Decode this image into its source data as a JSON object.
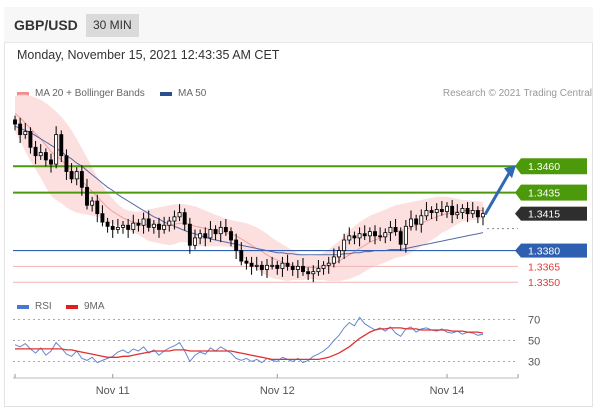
{
  "header": {
    "symbol": "GBP/USD",
    "timeframe": "30 MIN",
    "datetime": "Monday, November 15, 2021 12:43:35 AM CET"
  },
  "legend": {
    "bands_label": "MA 20 + Bollinger Bands",
    "ma50_label": "MA 50",
    "credit": "Research © 2021 Trading Central",
    "rsi_label": "RSI",
    "ma9_label": "9MA"
  },
  "colors": {
    "support": "#2f5fb0",
    "resistance": "#4c9a0b",
    "target_below": "#e23a3a",
    "current": "#2e2e2e",
    "arrow": "#2f69b2",
    "candle": "#000000",
    "bands_fill": "#fbdada",
    "ma20": "#f0a0a0",
    "ma50": "#5568a8",
    "rsi": "#6688cc",
    "rsi_ma": "#e03030"
  },
  "chart_data": [
    {
      "type": "candlestick",
      "title": "",
      "y_range": [
        1.3335,
        1.352
      ],
      "levels": [
        {
          "value": 1.346,
          "label": "1.3460",
          "kind": "resistance"
        },
        {
          "value": 1.3435,
          "label": "1.3435",
          "kind": "resistance"
        },
        {
          "value": 1.3415,
          "label": "1.3415",
          "kind": "current"
        },
        {
          "value": 1.338,
          "label": "1.3380",
          "kind": "support"
        },
        {
          "value": 1.3365,
          "label": "1.3365",
          "kind": "target"
        },
        {
          "value": 1.335,
          "label": "1.3350",
          "kind": "target"
        }
      ],
      "x_tick_labels": [
        "Nov 11",
        "Nov 12",
        "Nov 14"
      ],
      "close": [
        1.35,
        1.349,
        1.3493,
        1.3478,
        1.347,
        1.3473,
        1.3466,
        1.3462,
        1.349,
        1.347,
        1.3455,
        1.3448,
        1.3455,
        1.344,
        1.3423,
        1.3427,
        1.3415,
        1.3407,
        1.3403,
        1.34,
        1.3402,
        1.3404,
        1.34,
        1.3406,
        1.3404,
        1.341,
        1.3402,
        1.3405,
        1.34,
        1.3404,
        1.3408,
        1.3412,
        1.3416,
        1.3405,
        1.3385,
        1.3392,
        1.3396,
        1.3392,
        1.34,
        1.3396,
        1.3402,
        1.3398,
        1.339,
        1.338,
        1.337,
        1.3368,
        1.3365,
        1.3366,
        1.3362,
        1.3366,
        1.3366,
        1.3363,
        1.3368,
        1.3365,
        1.3362,
        1.3365,
        1.336,
        1.3358,
        1.336,
        1.3363,
        1.3366,
        1.3368,
        1.3374,
        1.338,
        1.339,
        1.3394,
        1.3392,
        1.3396,
        1.3394,
        1.3398,
        1.3394,
        1.3393,
        1.3397,
        1.3402,
        1.3398,
        1.3386,
        1.3403,
        1.341,
        1.3405,
        1.3413,
        1.3418,
        1.3416,
        1.3419,
        1.3417,
        1.3422,
        1.3414,
        1.3416,
        1.342,
        1.3415,
        1.3418,
        1.3412,
        1.3415
      ],
      "ma20": [
        1.351,
        1.3506,
        1.3501,
        1.3496,
        1.3491,
        1.3486,
        1.348,
        1.3474,
        1.347,
        1.3466,
        1.3461,
        1.3456,
        1.3451,
        1.3446,
        1.3441,
        1.3436,
        1.3431,
        1.3426,
        1.3421,
        1.3417,
        1.3414,
        1.3411,
        1.3409,
        1.3407,
        1.3406,
        1.3405,
        1.3404,
        1.3404,
        1.3404,
        1.3404,
        1.3404,
        1.3405,
        1.3406,
        1.3406,
        1.3405,
        1.3403,
        1.3402,
        1.3401,
        1.34,
        1.3399,
        1.3398,
        1.3397,
        1.3396,
        1.3394,
        1.3391,
        1.3388,
        1.3385,
        1.3382,
        1.3379,
        1.3376,
        1.3373,
        1.3371,
        1.3369,
        1.3367,
        1.3366,
        1.3365,
        1.3364,
        1.3364,
        1.3364,
        1.3364,
        1.3365,
        1.3366,
        1.3368,
        1.337,
        1.3373,
        1.3376,
        1.3379,
        1.3382,
        1.3385,
        1.3388,
        1.339,
        1.3392,
        1.3394,
        1.3396,
        1.3398,
        1.3399,
        1.34,
        1.3402,
        1.3404,
        1.3406,
        1.3408,
        1.341,
        1.3412,
        1.3414,
        1.3415,
        1.3416,
        1.3417,
        1.3418,
        1.3418,
        1.3418,
        1.3418,
        1.3418
      ],
      "bb_upper": [
        1.3527,
        1.3528,
        1.3528,
        1.3527,
        1.3525,
        1.3523,
        1.352,
        1.3516,
        1.3512,
        1.3507,
        1.3501,
        1.3494,
        1.3486,
        1.3477,
        1.3468,
        1.3459,
        1.345,
        1.3442,
        1.3435,
        1.3429,
        1.3424,
        1.342,
        1.3418,
        1.3417,
        1.3417,
        1.3418,
        1.3419,
        1.342,
        1.3421,
        1.3422,
        1.3423,
        1.3424,
        1.3424,
        1.3424,
        1.3423,
        1.3422,
        1.342,
        1.3418,
        1.3416,
        1.3414,
        1.3412,
        1.341,
        1.3409,
        1.3408,
        1.3407,
        1.3406,
        1.3404,
        1.3402,
        1.3399,
        1.3396,
        1.3392,
        1.3389,
        1.3386,
        1.3383,
        1.338,
        1.3378,
        1.3376,
        1.3375,
        1.3375,
        1.3376,
        1.3378,
        1.3381,
        1.3385,
        1.3389,
        1.3394,
        1.3399,
        1.3403,
        1.3407,
        1.341,
        1.3413,
        1.3415,
        1.3417,
        1.3419,
        1.3421,
        1.3423,
        1.3424,
        1.3425,
        1.3426,
        1.3427,
        1.3428,
        1.3429,
        1.343,
        1.3431,
        1.3431,
        1.3431,
        1.343,
        1.3429,
        1.3428,
        1.3428,
        1.3427,
        1.3427,
        1.3426
      ],
      "bb_lower": [
        1.3493,
        1.3484,
        1.3474,
        1.3465,
        1.3457,
        1.3449,
        1.344,
        1.3432,
        1.3428,
        1.3425,
        1.3421,
        1.3418,
        1.3416,
        1.3415,
        1.3414,
        1.3413,
        1.3412,
        1.341,
        1.3407,
        1.3405,
        1.3404,
        1.3402,
        1.34,
        1.3397,
        1.3395,
        1.3392,
        1.3389,
        1.3388,
        1.3387,
        1.3386,
        1.3385,
        1.3386,
        1.3388,
        1.3388,
        1.3387,
        1.3384,
        1.3384,
        1.3384,
        1.3384,
        1.3384,
        1.3384,
        1.3384,
        1.3383,
        1.338,
        1.3375,
        1.337,
        1.3366,
        1.3362,
        1.3359,
        1.3356,
        1.3354,
        1.3353,
        1.3352,
        1.3351,
        1.3352,
        1.3352,
        1.3352,
        1.3353,
        1.3353,
        1.3352,
        1.3352,
        1.3351,
        1.3351,
        1.3351,
        1.3352,
        1.3353,
        1.3355,
        1.3357,
        1.336,
        1.3363,
        1.3365,
        1.3367,
        1.3369,
        1.3371,
        1.3373,
        1.3374,
        1.3375,
        1.3378,
        1.3381,
        1.3384,
        1.3387,
        1.339,
        1.3393,
        1.3397,
        1.3399,
        1.3402,
        1.3405,
        1.3408,
        1.3408,
        1.3409,
        1.3409,
        1.341
      ],
      "ma50": [
        1.3498,
        1.3496,
        1.3494,
        1.3492,
        1.3489,
        1.3486,
        1.3483,
        1.348,
        1.3477,
        1.3474,
        1.347,
        1.3467,
        1.3463,
        1.346,
        1.3456,
        1.3452,
        1.3448,
        1.3444,
        1.344,
        1.3437,
        1.3433,
        1.343,
        1.3427,
        1.3424,
        1.3421,
        1.3418,
        1.3415,
        1.3412,
        1.341,
        1.3407,
        1.3405,
        1.3403,
        1.3401,
        1.3399,
        1.3397,
        1.3396,
        1.3394,
        1.3393,
        1.3391,
        1.339,
        1.3389,
        1.3388,
        1.3387,
        1.3386,
        1.3385,
        1.3384,
        1.3383,
        1.3382,
        1.3381,
        1.338,
        1.3379,
        1.3378,
        1.3378,
        1.3377,
        1.3377,
        1.3376,
        1.3376,
        1.3376,
        1.3376,
        1.3376,
        1.3376,
        1.3376,
        1.3376,
        1.3376,
        1.3377,
        1.3377,
        1.3378,
        1.3378,
        1.3379,
        1.3379,
        1.338,
        1.338,
        1.338,
        1.3381,
        1.3381,
        1.3381,
        1.3382,
        1.3383,
        1.3384,
        1.3385,
        1.3386,
        1.3387,
        1.3388,
        1.3389,
        1.339,
        1.3391,
        1.3392,
        1.3393,
        1.3394,
        1.3395,
        1.3396,
        1.3397
      ],
      "forecast_arrow": {
        "from": 1.3415,
        "to": 1.346
      }
    },
    {
      "type": "line",
      "title": "",
      "y_range": [
        20,
        80
      ],
      "y_tick_labels": [
        "70",
        "50",
        "30"
      ],
      "reference_lines": [
        70,
        50,
        30
      ],
      "x_tick_labels": [
        "Nov 11",
        "Nov 12",
        "Nov 14"
      ],
      "series": [
        {
          "name": "RSI",
          "values": [
            46,
            44,
            47,
            42,
            38,
            43,
            36,
            40,
            48,
            43,
            37,
            35,
            40,
            33,
            31,
            34,
            29,
            31,
            33,
            35,
            39,
            41,
            38,
            42,
            40,
            44,
            38,
            41,
            36,
            40,
            43,
            45,
            48,
            40,
            30,
            36,
            39,
            37,
            43,
            40,
            44,
            41,
            38,
            33,
            31,
            33,
            30,
            32,
            29,
            33,
            31,
            30,
            34,
            32,
            30,
            33,
            29,
            31,
            35,
            37,
            40,
            44,
            50,
            55,
            62,
            67,
            64,
            72,
            66,
            63,
            60,
            62,
            59,
            63,
            57,
            54,
            61,
            63,
            58,
            61,
            62,
            60,
            59,
            61,
            58,
            57,
            59,
            56,
            58,
            57,
            55,
            56
          ]
        },
        {
          "name": "9MA",
          "values": [
            42,
            42,
            42,
            42,
            42,
            42,
            42,
            42,
            42,
            42,
            41,
            41,
            40,
            39,
            38,
            37,
            36,
            35,
            34,
            34,
            34,
            35,
            35,
            36,
            37,
            38,
            39,
            40,
            40,
            40,
            40,
            41,
            41,
            41,
            40,
            40,
            40,
            40,
            40,
            40,
            40,
            40,
            40,
            39,
            38,
            37,
            36,
            35,
            34,
            33,
            32,
            32,
            32,
            32,
            32,
            32,
            32,
            32,
            32,
            32,
            33,
            34,
            36,
            38,
            41,
            44,
            48,
            52,
            55,
            58,
            60,
            61,
            61,
            62,
            62,
            62,
            61,
            61,
            61,
            60,
            60,
            60,
            60,
            60,
            60,
            59,
            59,
            59,
            58,
            58,
            58,
            57
          ]
        }
      ]
    }
  ]
}
